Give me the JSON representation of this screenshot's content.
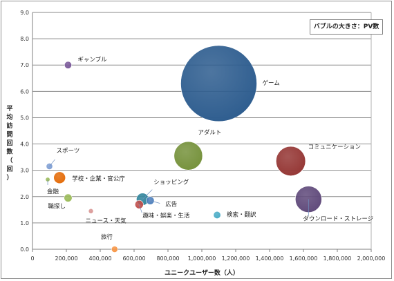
{
  "chart_data": {
    "type": "bubble",
    "xlabel": "ユニークユーザー数（人）",
    "ylabel": "平均訪問回数（回）",
    "legend_note": "バブルの大きさ：PV数",
    "xlim": [
      0,
      2000000
    ],
    "ylim": [
      0,
      9
    ],
    "x_ticks": [
      "0",
      "200,000",
      "400,000",
      "600,000",
      "800,000",
      "1,000,000",
      "1,200,000",
      "1,400,000",
      "1,600,000",
      "1,800,000",
      "2,000,000"
    ],
    "y_ticks": [
      "0.0",
      "1.0",
      "2.0",
      "3.0",
      "4.0",
      "5.0",
      "6.0",
      "7.0",
      "8.0",
      "9.0"
    ],
    "grid": "horizontal",
    "points": [
      {
        "name": "ゲーム",
        "x": 1100000,
        "y": 6.3,
        "size": 100,
        "color": "#2e5d8f"
      },
      {
        "name": "ギャンブル",
        "x": 210000,
        "y": 7.0,
        "size": 0.9,
        "color": "#7b5a9a"
      },
      {
        "name": "アダルト",
        "x": 920000,
        "y": 3.55,
        "size": 14,
        "color": "#76923c"
      },
      {
        "name": "コミュニケーション",
        "x": 1525000,
        "y": 3.35,
        "size": 15,
        "color": "#953735"
      },
      {
        "name": "ダウンロード・ストレージ",
        "x": 1630000,
        "y": 1.9,
        "size": 12,
        "color": "#604a7b"
      },
      {
        "name": "スポーツ",
        "x": 100000,
        "y": 3.15,
        "size": 0.7,
        "color": "#7f9fd4"
      },
      {
        "name": "学校・企業・官公庁",
        "x": 160000,
        "y": 2.72,
        "size": 2.4,
        "color": "#e46c0a"
      },
      {
        "name": "金融",
        "x": 90000,
        "y": 2.65,
        "size": 0.1,
        "color": "#9bbb59"
      },
      {
        "name": "職探し",
        "x": 210000,
        "y": 1.95,
        "size": 1.1,
        "color": "#9bbb59"
      },
      {
        "name": "ニュース・天気",
        "x": 345000,
        "y": 1.45,
        "size": 0.4,
        "color": "#d99694"
      },
      {
        "name": "ショッピング",
        "x": 650000,
        "y": 1.9,
        "size": 2.6,
        "color": "#31859c"
      },
      {
        "name": "広告",
        "x": 695000,
        "y": 1.85,
        "size": 1.1,
        "color": "#4f81bd"
      },
      {
        "name": "趣味・娯楽・生活",
        "x": 630000,
        "y": 1.7,
        "size": 1.2,
        "color": "#c0504d"
      },
      {
        "name": "検索・翻訳",
        "x": 1090000,
        "y": 1.3,
        "size": 0.9,
        "color": "#4bacc6"
      },
      {
        "name": "旅行",
        "x": 485000,
        "y": 0.0,
        "size": 0.7,
        "color": "#f79646"
      }
    ]
  }
}
